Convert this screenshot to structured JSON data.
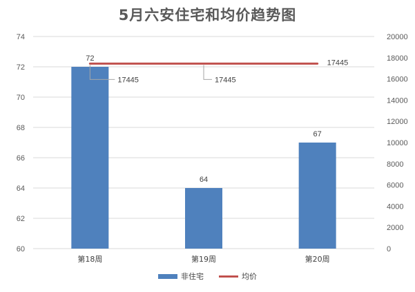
{
  "chart_data": {
    "type": "bar",
    "title": "5月六安住宅和均价趋势图",
    "categories": [
      "第18周",
      "第19周",
      "第20周"
    ],
    "series": [
      {
        "name": "非住宅",
        "type": "bar",
        "axis": "left",
        "color": "#4F81BD",
        "values": [
          72,
          64,
          67
        ],
        "labels": [
          "72",
          "64",
          "67"
        ]
      },
      {
        "name": "均价",
        "type": "line",
        "axis": "right",
        "color": "#C0504D",
        "values": [
          17445,
          17445,
          17445
        ],
        "labels": [
          "17445",
          "17445",
          "17445"
        ]
      }
    ],
    "y_left": {
      "min": 60,
      "max": 74,
      "ticks": [
        "60",
        "62",
        "64",
        "66",
        "68",
        "70",
        "72",
        "74"
      ]
    },
    "y_right": {
      "min": 0,
      "max": 20000,
      "ticks": [
        "0",
        "2000",
        "4000",
        "6000",
        "8000",
        "10000",
        "12000",
        "14000",
        "16000",
        "18000",
        "20000"
      ]
    },
    "grid": true,
    "legend_position": "bottom"
  }
}
